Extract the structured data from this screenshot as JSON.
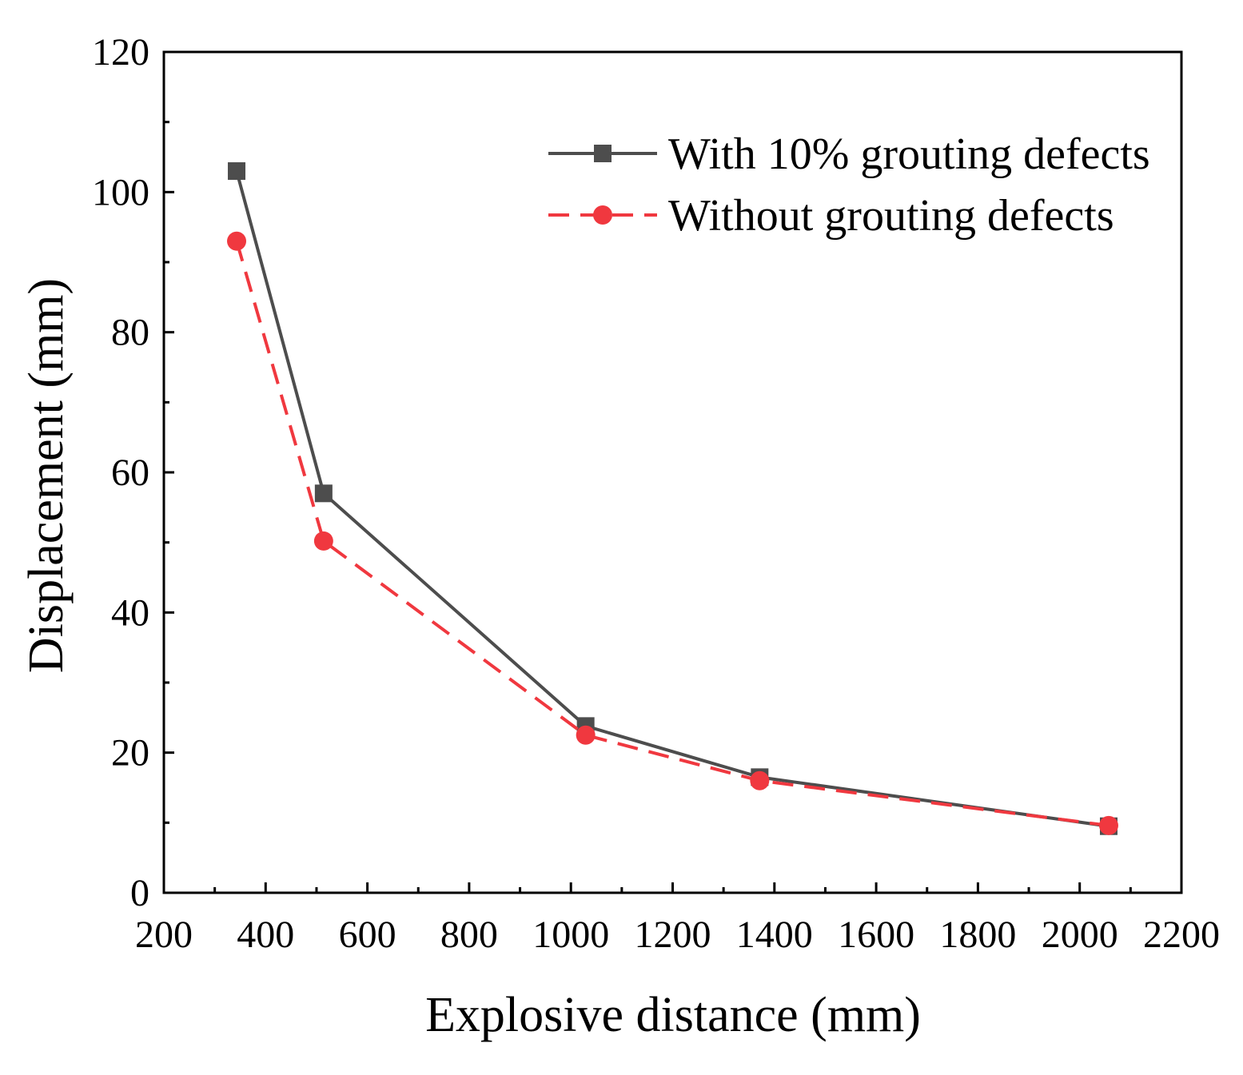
{
  "chart_data": {
    "type": "line",
    "title": "",
    "xlabel": "Explosive distance (mm)",
    "ylabel": "Displacement (mm)",
    "xlim": [
      200,
      2200
    ],
    "ylim": [
      0,
      120
    ],
    "xticks": [
      200,
      400,
      600,
      800,
      1000,
      1200,
      1400,
      1600,
      1800,
      2000,
      2200
    ],
    "yticks": [
      0,
      20,
      40,
      60,
      80,
      100,
      120
    ],
    "legend_position": "top-right",
    "grid": false,
    "series": [
      {
        "name": "With 10% grouting defects",
        "color": "#4d4d4d",
        "marker": "square",
        "line_style": "solid",
        "x": [
          343,
          514,
          1029,
          1371,
          2057
        ],
        "y": [
          103,
          57,
          23.8,
          16.5,
          9.5
        ]
      },
      {
        "name": "Without grouting defects",
        "color": "#f0383f",
        "marker": "circle",
        "line_style": "dashed",
        "x": [
          343,
          514,
          1029,
          1371,
          2057
        ],
        "y": [
          93,
          50.2,
          22.5,
          16,
          9.6
        ]
      }
    ]
  }
}
